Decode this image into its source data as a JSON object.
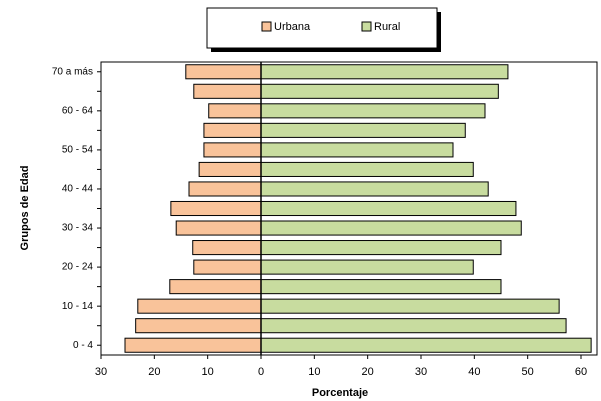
{
  "chart_data": {
    "type": "bar",
    "orientation": "horizontal",
    "x_label": "Porcentaje",
    "y_label": "Grupos de Edad",
    "categories": [
      "0 - 4",
      null,
      "10 - 14",
      null,
      "20 - 24",
      null,
      "30 - 34",
      null,
      "40 - 44",
      null,
      "50 - 54",
      null,
      "60 - 64",
      null,
      "70  a más"
    ],
    "series": [
      {
        "name": "Urbana",
        "color": "#f9c39a",
        "values": [
          -25.5,
          -23.5,
          -23.1,
          -17.1,
          -12.6,
          -12.8,
          -15.9,
          -16.9,
          -13.5,
          -11.6,
          -10.7,
          -10.7,
          -9.8,
          -12.6,
          -14.1
        ]
      },
      {
        "name": "Rural",
        "color": "#c8dc9f",
        "values": [
          61.9,
          57.2,
          55.9,
          45,
          39.8,
          45,
          48.8,
          47.8,
          42.6,
          39.8,
          36,
          38.3,
          42,
          44.5,
          46.3
        ]
      }
    ],
    "xlim": [
      -30,
      63
    ],
    "xticks": [
      {
        "value": -30,
        "label": "30"
      },
      {
        "value": -20,
        "label": "20"
      },
      {
        "value": -10,
        "label": "10"
      },
      0,
      10,
      20,
      30,
      40,
      50,
      60
    ],
    "legend_position": "top"
  }
}
